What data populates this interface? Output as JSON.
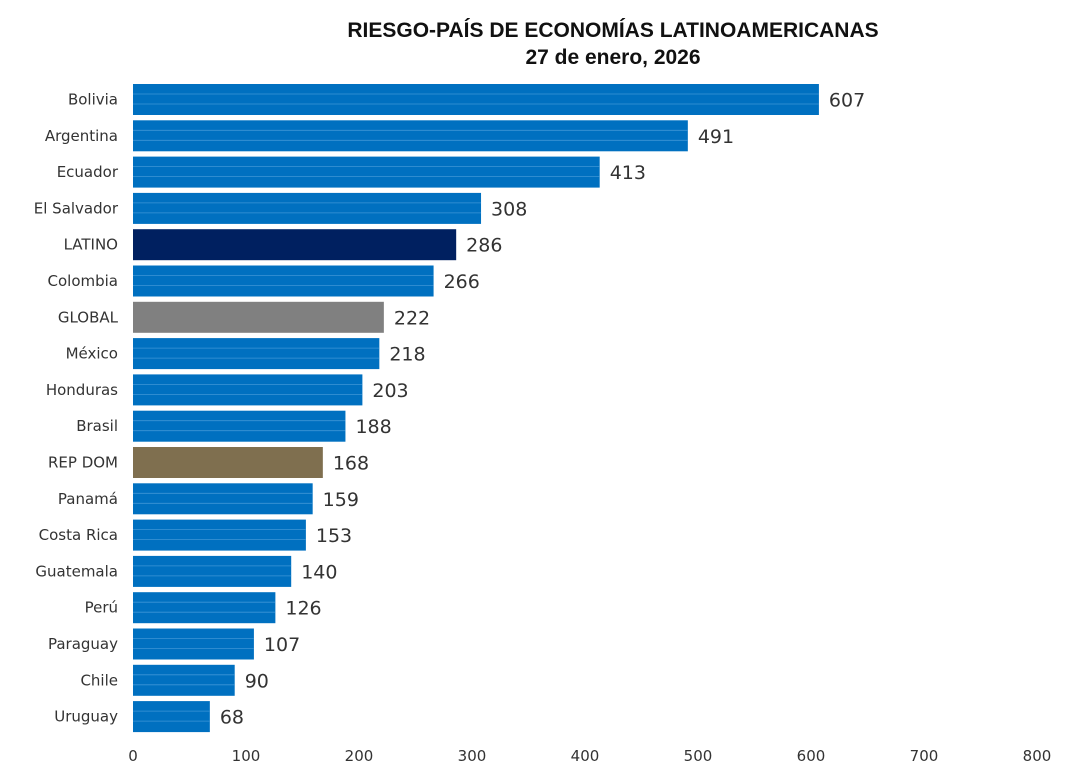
{
  "chart_data": {
    "type": "bar",
    "orientation": "horizontal",
    "title": "RIESGO-PAÍS DE ECONOMÍAS LATINOAMERICANAS",
    "subtitle": "27 de enero, 2026",
    "xlabel": "",
    "ylabel": "",
    "xlim": [
      0,
      800
    ],
    "xticks": [
      0,
      100,
      200,
      300,
      400,
      500,
      600,
      700,
      800
    ],
    "grid": false,
    "categories": [
      "Bolivia",
      "Argentina",
      "Ecuador",
      "El Salvador",
      "LATINO",
      "Colombia",
      "GLOBAL",
      "México",
      "Honduras",
      "Brasil",
      "REP DOM",
      "Panamá",
      "Costa Rica",
      "Guatemala",
      "Perú",
      "Paraguay",
      "Chile",
      "Uruguay"
    ],
    "values": [
      607,
      491,
      413,
      308,
      286,
      266,
      222,
      218,
      203,
      188,
      168,
      159,
      153,
      140,
      126,
      107,
      90,
      68
    ],
    "colors": {
      "default": "#0070c0",
      "LATINO": "#002060",
      "GLOBAL": "#808080",
      "REP DOM": "#7f6f4f"
    },
    "data_labels": true
  }
}
